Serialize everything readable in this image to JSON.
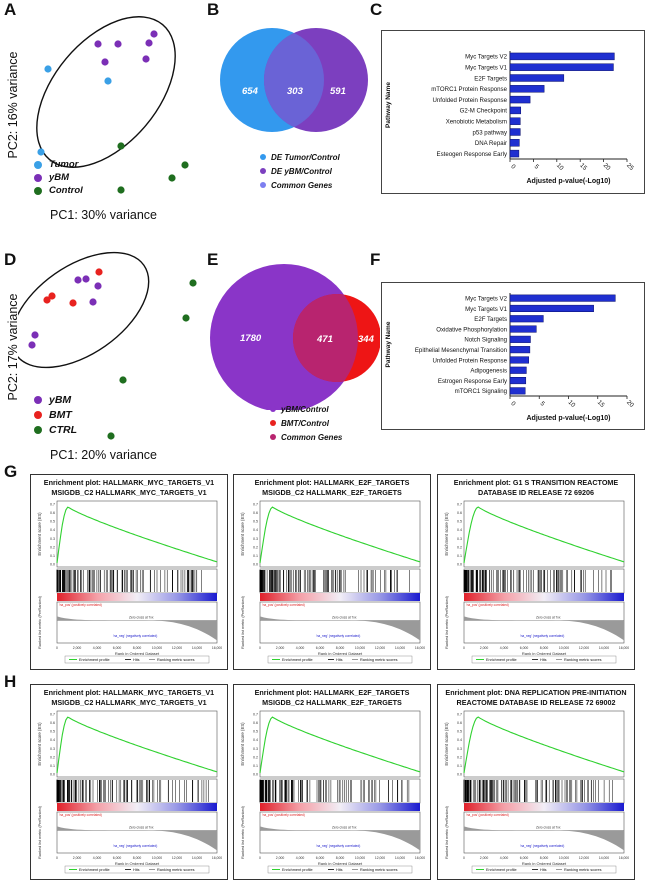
{
  "panel_letters": {
    "A": "A",
    "B": "B",
    "C": "C",
    "D": "D",
    "E": "E",
    "F": "F",
    "G": "G",
    "H": "H"
  },
  "pcaA": {
    "ylabel": "PC2: 16% variance",
    "xlabel": "PC1: 30% variance",
    "legend": [
      {
        "label": "Tumor",
        "color": "#3aa0e6"
      },
      {
        "label": "yBM",
        "color": "#7b2fb6"
      },
      {
        "label": "Control",
        "color": "#1f6e1f"
      }
    ]
  },
  "pcaD": {
    "ylabel": "PC2: 17% variance",
    "xlabel": "PC1: 20% variance",
    "legend": [
      {
        "label": "yBM",
        "color": "#7b2fb6"
      },
      {
        "label": "BMT",
        "color": "#e8221f"
      },
      {
        "label": "CTRL",
        "color": "#1f6e1f"
      }
    ]
  },
  "vennB": {
    "left_value": "654",
    "overlap_value": "303",
    "right_value": "591",
    "left_color": "#3399ee",
    "right_color": "#7c3fbf",
    "overlap_color": "#6a63d6",
    "legend": [
      {
        "label": "DE Tumor/Control",
        "color": "#3399ee"
      },
      {
        "label": "DE yBM/Control",
        "color": "#7c3fbf"
      },
      {
        "label": "Common Genes",
        "color": "#7d7ff0"
      }
    ]
  },
  "vennE": {
    "left_value": "1780",
    "overlap_value": "471",
    "right_value": "344",
    "left_color": "#8a35c8",
    "right_color": "#ee1515",
    "overlap_color": "#b8246f",
    "legend": [
      {
        "label": "yBM/Control",
        "color": "#8a35c8"
      },
      {
        "label": "BMT/Control",
        "color": "#e8221f"
      },
      {
        "label": "Common Genes",
        "color": "#b8246f"
      }
    ]
  },
  "chart_data": [
    {
      "type": "bar",
      "orientation": "horizontal",
      "title": "",
      "ylabel": "Pathway Name",
      "xlabel": "Adjusted p-value(-Log10)",
      "xlim": [
        0,
        25
      ],
      "xticks": [
        "0",
        "5",
        "10",
        "15",
        "20",
        "25"
      ],
      "bar_color": "#1f2fd0",
      "categories": [
        "Myc Targets V2",
        "Myc Targets V1",
        "E2F Targets",
        "mTORC1 Protein Response",
        "Unfolded Protein Response",
        "G2-M Checkpoint",
        "Xenobiotic Metabolism",
        "p53 pathway",
        "DNA Repair",
        "Esteogen Response Early"
      ],
      "values": [
        22.3,
        22.1,
        11.5,
        7.3,
        4.3,
        2.3,
        2.2,
        2.2,
        2.0,
        1.9
      ]
    },
    {
      "type": "bar",
      "orientation": "horizontal",
      "title": "",
      "ylabel": "Pathway Name",
      "xlabel": "Adjusted p-value(-Log10)",
      "xlim": [
        0,
        20
      ],
      "xticks": [
        "0",
        "5",
        "10",
        "15",
        "20"
      ],
      "bar_color": "#1f2fd0",
      "categories": [
        "Myc Targets V2",
        "Myc Targets V1",
        "E2F Targets",
        "Oxidative Phosphorylation",
        "Notch Signaling",
        "Epithelial Mesenchymal Transition",
        "Unfolded Protein Response",
        "Adipogenesis",
        "Estrogen Response Early",
        "mTORC1 Signaling"
      ],
      "values": [
        18.0,
        14.3,
        5.7,
        4.5,
        3.5,
        3.4,
        3.2,
        2.8,
        2.7,
        2.6
      ]
    }
  ],
  "gsea": {
    "ylabel_top": "Enrichment score (ES)",
    "ylabel_bottom": "Ranked list metric (PreRanked)",
    "xlabel": "Rank in Ordered Dataset",
    "pos_label": "'na_pos' (positively correlated)",
    "neg_label": "'na_neg' (negatively correlated)",
    "zero_label": "Zero cross at 7xx",
    "legend": [
      "Enrichment profile",
      "Hits",
      "Ranking metric scores"
    ],
    "es_ticks": [
      "0.7",
      "0.6",
      "0.5",
      "0.4",
      "0.3",
      "0.2",
      "0.1",
      "0.0"
    ],
    "x_ticks": [
      "0",
      "2,000",
      "4,000",
      "6,000",
      "8,000",
      "10,000",
      "12,000",
      "14,000",
      "16,000"
    ],
    "panels": [
      {
        "row": "G",
        "title": "Enrichment plot: HALLMARK_MYC_TARGETS_V1 MSIGDB_C2 HALLMARK_MYC_TARGETS_V1"
      },
      {
        "row": "G",
        "title": "Enrichment plot: HALLMARK_E2F_TARGETS MSIGDB_C2 HALLMARK_E2F_TARGETS"
      },
      {
        "row": "G",
        "title": "Enrichment plot: G1 S TRANSITION REACTOME DATABASE ID RELEASE 72 69206"
      },
      {
        "row": "H",
        "title": "Enrichment plot: HALLMARK_MYC_TARGETS_V1 MSIGDB_C2 HALLMARK_MYC_TARGETS_V1"
      },
      {
        "row": "H",
        "title": "Enrichment plot: HALLMARK_E2F_TARGETS MSIGDB_C2 HALLMARK_E2F_TARGETS"
      },
      {
        "row": "H",
        "title": "Enrichment plot: DNA REPLICATION PRE-INITIATION REACTOME DATABASE ID RELEASE 72 69002"
      }
    ]
  }
}
